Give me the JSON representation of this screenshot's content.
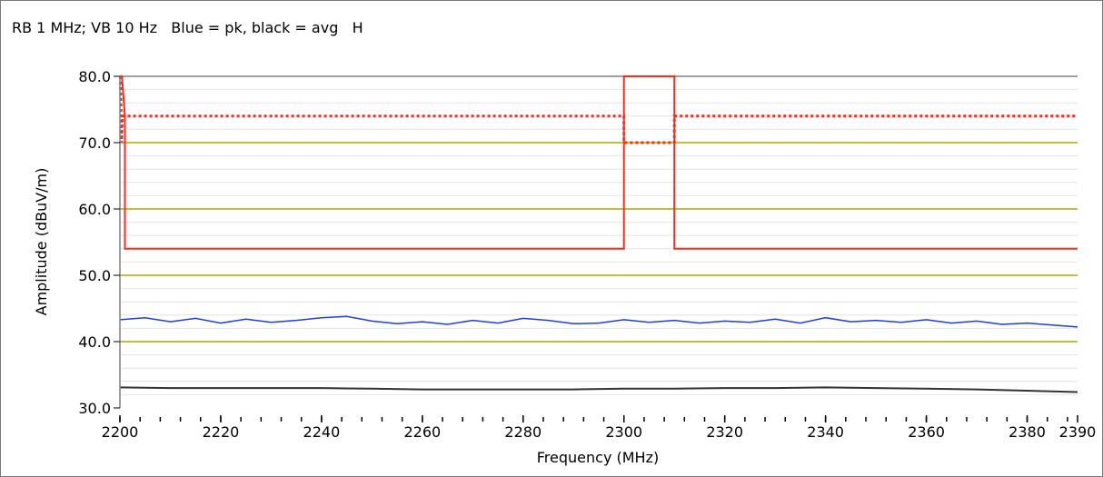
{
  "caption": "RB 1 MHz; VB 10 Hz   Blue = pk, black = avg   H",
  "chart_data": {
    "type": "line",
    "title": "RB 1 MHz; VB 10 Hz   Blue = pk, black = avg   H",
    "xlabel": "Frequency (MHz)",
    "ylabel": "Amplitude (dBuV/m)",
    "xlim": [
      2200,
      2390
    ],
    "ylim": [
      30,
      80
    ],
    "grid": true,
    "x_ticks": [
      2200,
      2220,
      2240,
      2260,
      2280,
      2300,
      2320,
      2340,
      2360,
      2380,
      2390
    ],
    "x_tick_labels": [
      "2200",
      "2220",
      "2240",
      "2260",
      "2280",
      "2300",
      "2320",
      "2340",
      "2360",
      "2380",
      "2390"
    ],
    "y_ticks": [
      30,
      40,
      50,
      60,
      70,
      80
    ],
    "y_tick_labels": [
      "30.0",
      "40.0",
      "50.0",
      "60.0",
      "70.0",
      "80.0"
    ],
    "colors": {
      "peak": "#1f3fd8",
      "average": "#333333",
      "limit": "#ff2a1a",
      "gridline": "#a8a800",
      "minor_grid": "#e4e4e4",
      "axis": "#808080"
    },
    "series": [
      {
        "name": "pk",
        "color": "#1f3fd8",
        "x": [
          2200,
          2205,
          2210,
          2215,
          2220,
          2225,
          2230,
          2235,
          2240,
          2245,
          2250,
          2255,
          2260,
          2265,
          2270,
          2275,
          2280,
          2285,
          2290,
          2295,
          2300,
          2305,
          2310,
          2315,
          2320,
          2325,
          2330,
          2335,
          2340,
          2345,
          2350,
          2355,
          2360,
          2365,
          2370,
          2375,
          2380,
          2385,
          2390
        ],
        "y": [
          43.3,
          43.6,
          43.0,
          43.5,
          42.8,
          43.4,
          42.9,
          43.2,
          43.6,
          43.8,
          43.1,
          42.7,
          43.0,
          42.6,
          43.2,
          42.8,
          43.5,
          43.2,
          42.7,
          42.8,
          43.3,
          42.9,
          43.2,
          42.8,
          43.1,
          42.9,
          43.4,
          42.8,
          43.6,
          43.0,
          43.2,
          42.9,
          43.3,
          42.8,
          43.1,
          42.6,
          42.8,
          42.5,
          42.2
        ]
      },
      {
        "name": "avg",
        "color": "#333333",
        "x": [
          2200,
          2210,
          2220,
          2230,
          2240,
          2250,
          2260,
          2270,
          2280,
          2290,
          2300,
          2310,
          2320,
          2330,
          2340,
          2350,
          2360,
          2370,
          2380,
          2390
        ],
        "y": [
          33.1,
          33.0,
          33.0,
          33.0,
          33.0,
          32.9,
          32.8,
          32.8,
          32.8,
          32.8,
          32.9,
          32.9,
          33.0,
          33.0,
          33.1,
          33.0,
          32.9,
          32.8,
          32.6,
          32.4
        ]
      },
      {
        "name": "limit",
        "color": "#ff2a1a",
        "style": "solid",
        "x": [
          2200,
          2200.4,
          2201,
          2201,
          2300,
          2300,
          2310,
          2310,
          2390
        ],
        "y": [
          80,
          80,
          74,
          54,
          54,
          80,
          80,
          54,
          54
        ]
      },
      {
        "name": "limit-dotted",
        "color": "#ff2a1a",
        "style": "dotted",
        "x": [
          2200.1,
          2200.3,
          2200.5,
          2300,
          2300,
          2310,
          2310,
          2390
        ],
        "y": [
          80,
          70,
          74,
          74,
          70,
          70,
          74,
          74
        ]
      }
    ]
  }
}
